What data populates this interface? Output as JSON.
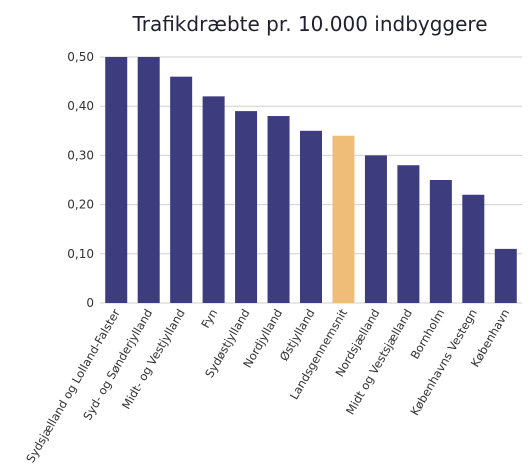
{
  "chart_data": {
    "type": "bar",
    "title": "Trafikdræbte pr. 10.000 indbyggere",
    "xlabel": "",
    "ylabel": "",
    "ylim": [
      0,
      0.5
    ],
    "yticks": [
      0,
      0.1,
      0.2,
      0.3,
      0.4,
      0.5
    ],
    "ytick_labels": [
      "0",
      "0,10",
      "0,20",
      "0,30",
      "0,40",
      "0,50"
    ],
    "grid": true,
    "categories": [
      "Sydsjælland og Lolland-Falster",
      "Syd- og Sønderjylland",
      "Midt- og Vestjylland",
      "Fyn",
      "Sydøstjylland",
      "Nordjylland",
      "Østjylland",
      "Landsgennemsnit",
      "Nordsjælland",
      "Midt og Vestsjælland",
      "Bornholm",
      "Københavns Vestegn",
      "København"
    ],
    "values": [
      0.5,
      0.5,
      0.46,
      0.42,
      0.39,
      0.38,
      0.35,
      0.34,
      0.3,
      0.28,
      0.25,
      0.22,
      0.11
    ],
    "colors": {
      "bar": "#3c3c7e",
      "highlight": "#f0bd78",
      "grid": "#cfcfcf"
    },
    "highlight_category": "Landsgennemsnit"
  }
}
